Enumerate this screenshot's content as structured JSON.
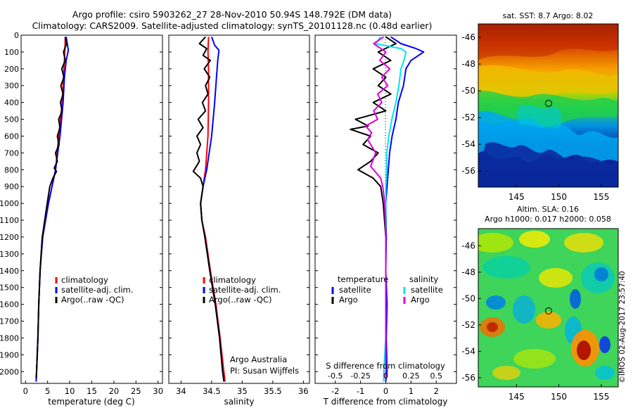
{
  "header": {
    "line1": "Argo profile: csiro 5903262_27 28-Nov-2010 50.94S 148.792E (DM data)",
    "line2": "Climatology: CARS2009. Satellite-adjusted climatology: synTS_20101128.nc (0.48d earlier)"
  },
  "colors": {
    "climatology": "#ff0000",
    "satellite": "#0000ff",
    "argo": "#000000",
    "sal_satellite": "#00e5ee",
    "sal_argo": "#dd00dd"
  },
  "chart_data": [
    {
      "type": "line",
      "id": "temperature",
      "xlabel": "temperature (deg C)",
      "xlim": [
        -1,
        31
      ],
      "ylim": [
        0,
        2070
      ],
      "xticks": [
        0,
        5,
        10,
        15,
        20,
        25,
        30
      ],
      "yticks": [
        0,
        100,
        200,
        300,
        400,
        500,
        600,
        700,
        800,
        900,
        1000,
        1100,
        1200,
        1300,
        1400,
        1500,
        1600,
        1700,
        1800,
        1900,
        2000
      ],
      "legend": [
        "climatology",
        "satellite-adj. clim.",
        "Argo(..raw -QC)"
      ],
      "series": [
        {
          "name": "climatology",
          "color": "climatology",
          "points": [
            [
              9.0,
              10
            ],
            [
              8.9,
              100
            ],
            [
              8.7,
              200
            ],
            [
              8.3,
              400
            ],
            [
              7.5,
              600
            ],
            [
              6.8,
              800
            ],
            [
              5.2,
              1000
            ],
            [
              3.8,
              1200
            ],
            [
              3.3,
              1400
            ],
            [
              3.0,
              1600
            ],
            [
              2.8,
              1800
            ],
            [
              2.5,
              2000
            ],
            [
              2.4,
              2060
            ]
          ]
        },
        {
          "name": "satellite-adj. clim.",
          "color": "satellite",
          "points": [
            [
              9.2,
              10
            ],
            [
              9.5,
              60
            ],
            [
              9.7,
              90
            ],
            [
              9.2,
              150
            ],
            [
              8.8,
              250
            ],
            [
              8.5,
              400
            ],
            [
              7.8,
              600
            ],
            [
              6.8,
              800
            ],
            [
              5.2,
              1000
            ],
            [
              3.9,
              1200
            ],
            [
              3.3,
              1400
            ],
            [
              3.0,
              1600
            ],
            [
              2.8,
              1800
            ],
            [
              2.5,
              2000
            ],
            [
              2.4,
              2060
            ]
          ]
        },
        {
          "name": "Argo(..raw -QC)",
          "color": "argo",
          "points": [
            [
              9.0,
              10
            ],
            [
              9.3,
              50
            ],
            [
              8.6,
              100
            ],
            [
              9.0,
              150
            ],
            [
              8.2,
              200
            ],
            [
              8.7,
              250
            ],
            [
              8.0,
              300
            ],
            [
              8.5,
              350
            ],
            [
              7.9,
              400
            ],
            [
              8.3,
              450
            ],
            [
              7.5,
              500
            ],
            [
              7.8,
              550
            ],
            [
              7.2,
              600
            ],
            [
              7.6,
              650
            ],
            [
              6.8,
              700
            ],
            [
              7.2,
              750
            ],
            [
              6.5,
              790
            ],
            [
              7.0,
              810
            ],
            [
              6.2,
              850
            ],
            [
              5.5,
              900
            ],
            [
              4.9,
              1000
            ],
            [
              3.8,
              1200
            ],
            [
              3.3,
              1400
            ],
            [
              3.0,
              1600
            ],
            [
              2.8,
              1800
            ],
            [
              2.5,
              2000
            ],
            [
              2.4,
              2040
            ]
          ]
        }
      ]
    },
    {
      "type": "line",
      "id": "salinity",
      "xlabel": "salinity",
      "xlim": [
        33.8,
        36.1
      ],
      "ylim": [
        0,
        2070
      ],
      "xticks": [
        34,
        34.5,
        35,
        35.5,
        36
      ],
      "xticklabels": [
        "34",
        "34.5",
        "35",
        "35.5",
        "36"
      ],
      "legend": [
        "climatology",
        "satellite-adj. clim.",
        "Argo(..raw -QC)"
      ],
      "annotations": [
        "Argo Australia",
        "PI: Susan Wijffels"
      ],
      "series": [
        {
          "name": "climatology",
          "color": "climatology",
          "points": [
            [
              34.45,
              10
            ],
            [
              34.44,
              100
            ],
            [
              34.45,
              200
            ],
            [
              34.45,
              400
            ],
            [
              34.44,
              600
            ],
            [
              34.4,
              800
            ],
            [
              34.36,
              900
            ],
            [
              34.32,
              1000
            ],
            [
              34.34,
              1100
            ],
            [
              34.4,
              1200
            ],
            [
              34.48,
              1400
            ],
            [
              34.57,
              1600
            ],
            [
              34.64,
              1800
            ],
            [
              34.7,
              2000
            ],
            [
              34.72,
              2060
            ]
          ]
        },
        {
          "name": "satellite-adj. clim.",
          "color": "satellite",
          "points": [
            [
              34.5,
              10
            ],
            [
              34.55,
              60
            ],
            [
              34.62,
              90
            ],
            [
              34.6,
              150
            ],
            [
              34.58,
              250
            ],
            [
              34.55,
              400
            ],
            [
              34.5,
              600
            ],
            [
              34.42,
              800
            ],
            [
              34.36,
              900
            ],
            [
              34.32,
              1000
            ],
            [
              34.34,
              1100
            ],
            [
              34.39,
              1200
            ],
            [
              34.47,
              1400
            ],
            [
              34.56,
              1600
            ],
            [
              34.63,
              1800
            ],
            [
              34.68,
              2000
            ],
            [
              34.7,
              2060
            ]
          ]
        },
        {
          "name": "Argo(..raw -QC)",
          "color": "argo",
          "points": [
            [
              34.4,
              10
            ],
            [
              34.3,
              50
            ],
            [
              34.42,
              80
            ],
            [
              34.36,
              120
            ],
            [
              34.48,
              150
            ],
            [
              34.38,
              200
            ],
            [
              34.47,
              250
            ],
            [
              34.4,
              300
            ],
            [
              34.44,
              350
            ],
            [
              34.35,
              400
            ],
            [
              34.4,
              450
            ],
            [
              34.28,
              500
            ],
            [
              34.36,
              550
            ],
            [
              34.26,
              600
            ],
            [
              34.32,
              650
            ],
            [
              34.26,
              700
            ],
            [
              34.3,
              750
            ],
            [
              34.2,
              810
            ],
            [
              34.32,
              850
            ],
            [
              34.36,
              900
            ],
            [
              34.32,
              1000
            ],
            [
              34.34,
              1100
            ],
            [
              34.39,
              1200
            ],
            [
              34.47,
              1400
            ],
            [
              34.56,
              1600
            ],
            [
              34.63,
              1800
            ],
            [
              34.68,
              2000
            ],
            [
              34.7,
              2050
            ]
          ]
        }
      ]
    },
    {
      "type": "line",
      "id": "difference",
      "xlabel": "T difference from climatology",
      "xlabel_top": "S difference from climatology",
      "xlim": [
        -2.8,
        2.8
      ],
      "ylim": [
        0,
        2070
      ],
      "xticks": [
        -2,
        -1,
        0,
        1,
        2
      ],
      "top_ticks": [
        "-0.5",
        "-0.25",
        "0",
        "0.25",
        "0.5"
      ],
      "legend_headers": [
        "temperature",
        "salinity"
      ],
      "legend": [
        "satellite",
        "Argo",
        "satellite",
        "Argo"
      ],
      "series": [
        {
          "name": "satellite",
          "group": "temperature",
          "color": "satellite",
          "points": [
            [
              0.2,
              10
            ],
            [
              0.6,
              50
            ],
            [
              1.2,
              80
            ],
            [
              1.5,
              100
            ],
            [
              1.0,
              150
            ],
            [
              0.8,
              200
            ],
            [
              0.7,
              300
            ],
            [
              0.5,
              400
            ],
            [
              0.4,
              500
            ],
            [
              0.25,
              600
            ],
            [
              0.15,
              700
            ],
            [
              0.1,
              800
            ],
            [
              0.05,
              900
            ],
            [
              0.0,
              1000
            ],
            [
              0.02,
              1200
            ],
            [
              0.0,
              1400
            ],
            [
              0.05,
              1600
            ],
            [
              0.02,
              1800
            ],
            [
              0.05,
              2000
            ],
            [
              0.0,
              2060
            ]
          ]
        },
        {
          "name": "Argo",
          "group": "temperature",
          "color": "argo",
          "points": [
            [
              0.0,
              10
            ],
            [
              0.4,
              50
            ],
            [
              -0.3,
              100
            ],
            [
              0.2,
              150
            ],
            [
              -0.5,
              200
            ],
            [
              0.0,
              250
            ],
            [
              -0.3,
              300
            ],
            [
              0.2,
              350
            ],
            [
              -0.5,
              400
            ],
            [
              0.0,
              450
            ],
            [
              -1.2,
              500
            ],
            [
              -0.7,
              540
            ],
            [
              -1.4,
              560
            ],
            [
              -0.6,
              600
            ],
            [
              -0.9,
              650
            ],
            [
              -0.3,
              700
            ],
            [
              -0.6,
              750
            ],
            [
              -1.1,
              800
            ],
            [
              -0.5,
              850
            ],
            [
              -0.2,
              900
            ],
            [
              -0.1,
              1000
            ],
            [
              0.0,
              1200
            ],
            [
              0.0,
              1400
            ],
            [
              0.0,
              1600
            ],
            [
              0.0,
              1800
            ],
            [
              0.0,
              2000
            ],
            [
              0.0,
              2040
            ]
          ]
        },
        {
          "name": "satellite",
          "group": "salinity",
          "color": "sal_satellite",
          "points": [
            [
              -0.05,
              10
            ],
            [
              -0.1,
              50
            ],
            [
              0.15,
              80
            ],
            [
              0.2,
              100
            ],
            [
              0.18,
              150
            ],
            [
              0.15,
              200
            ],
            [
              0.13,
              300
            ],
            [
              0.1,
              400
            ],
            [
              0.06,
              500
            ],
            [
              0.03,
              600
            ],
            [
              0.01,
              700
            ],
            [
              0.01,
              800
            ],
            [
              0.0,
              900
            ],
            [
              0.0,
              1000
            ],
            [
              0.0,
              1200
            ],
            [
              0.0,
              1400
            ],
            [
              0.0,
              1600
            ],
            [
              0.0,
              1800
            ],
            [
              -0.02,
              2000
            ],
            [
              -0.02,
              2060
            ]
          ]
        },
        {
          "name": "Argo",
          "group": "salinity",
          "color": "sal_argo",
          "points": [
            [
              -0.02,
              10
            ],
            [
              -0.12,
              50
            ],
            [
              0.0,
              100
            ],
            [
              -0.06,
              150
            ],
            [
              0.04,
              200
            ],
            [
              -0.04,
              250
            ],
            [
              0.02,
              300
            ],
            [
              -0.08,
              350
            ],
            [
              -0.04,
              400
            ],
            [
              -0.12,
              450
            ],
            [
              -0.08,
              500
            ],
            [
              -0.2,
              540
            ],
            [
              -0.14,
              580
            ],
            [
              -0.18,
              620
            ],
            [
              -0.1,
              700
            ],
            [
              -0.15,
              780
            ],
            [
              -0.05,
              850
            ],
            [
              -0.03,
              900
            ],
            [
              -0.01,
              1000
            ],
            [
              0.0,
              1200
            ],
            [
              0.0,
              1400
            ],
            [
              0.0,
              1600
            ],
            [
              0.0,
              1800
            ],
            [
              0.0,
              2000
            ],
            [
              0.0,
              2050
            ]
          ]
        }
      ]
    },
    {
      "type": "heatmap",
      "id": "sst-map",
      "title": "sat. SST: 8.7 Argo: 8.02",
      "xlim": [
        140.5,
        157
      ],
      "ylim": [
        -57.2,
        -45
      ],
      "xticks": [
        145,
        150,
        155
      ],
      "yticks": [
        -46,
        -48,
        -50,
        -52,
        -54,
        -56
      ],
      "marker": [
        148.79,
        -50.94
      ]
    },
    {
      "type": "heatmap",
      "id": "sla-map",
      "title": "Altim. SLA: 0.16",
      "subtitle": "Argo h1000: 0.017 h2000: 0.058",
      "xlim": [
        140.5,
        157
      ],
      "ylim": [
        -56.7,
        -44.7
      ],
      "xticks": [
        145,
        150,
        155
      ],
      "yticks": [
        -46,
        -48,
        -50,
        -52,
        -54,
        -56
      ],
      "marker": [
        148.79,
        -50.94
      ]
    }
  ],
  "credit": "©IMOS 02-Aug-2017 23:57:40"
}
